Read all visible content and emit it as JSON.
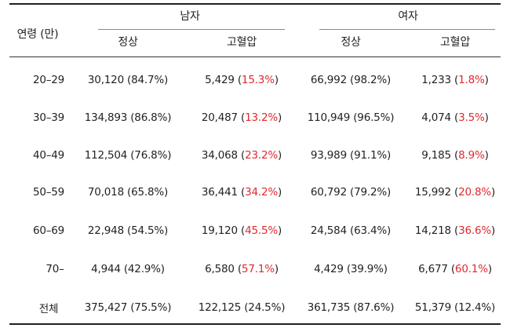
{
  "header": {
    "age_label": "연령 (만)",
    "male": "남자",
    "female": "여자",
    "normal": "정상",
    "hyper": "고혈압"
  },
  "rows": [
    {
      "age": "20–29",
      "m_normal": "30,120 (84.7%)",
      "m_hyper_n": "5,429",
      "m_hyper_p": "15.3%",
      "f_normal": "66,992 (98.2%)",
      "f_hyper_n": "1,233",
      "f_hyper_p": "1.8%"
    },
    {
      "age": "30–39",
      "m_normal": "134,893 (86.8%)",
      "m_hyper_n": "20,487",
      "m_hyper_p": "13.2%",
      "f_normal": "110,949 (96.5%)",
      "f_hyper_n": "4,074",
      "f_hyper_p": "3.5%"
    },
    {
      "age": "40–49",
      "m_normal": "112,504 (76.8%)",
      "m_hyper_n": "34,068",
      "m_hyper_p": "23.2%",
      "f_normal": "93,989 (91.1%)",
      "f_hyper_n": "9,185",
      "f_hyper_p": "8.9%"
    },
    {
      "age": "50–59",
      "m_normal": "70,018 (65.8%)",
      "m_hyper_n": "36,441",
      "m_hyper_p": "34.2%",
      "f_normal": "60,792 (79.2%)",
      "f_hyper_n": "15,992",
      "f_hyper_p": "20.8%"
    },
    {
      "age": "60–69",
      "m_normal": "22,948 (54.5%)",
      "m_hyper_n": "19,120",
      "m_hyper_p": "45.5%",
      "f_normal": "24,584 (63.4%)",
      "f_hyper_n": "14,218",
      "f_hyper_p": "36.6%"
    },
    {
      "age": "70–",
      "m_normal": "4,944 (42.9%)",
      "m_hyper_n": "6,580",
      "m_hyper_p": "57.1%",
      "f_normal": "4,429 (39.9%)",
      "f_hyper_n": "6,677",
      "f_hyper_p": "60.1%"
    }
  ],
  "total": {
    "age": "전체",
    "m_normal": "375,427 (75.5%)",
    "m_hyper": "122,125 (24.5%)",
    "f_normal": "361,735 (87.6%)",
    "f_hyper": "51,379 (12.4%)"
  },
  "colors": {
    "highlight": "#e0282e"
  }
}
